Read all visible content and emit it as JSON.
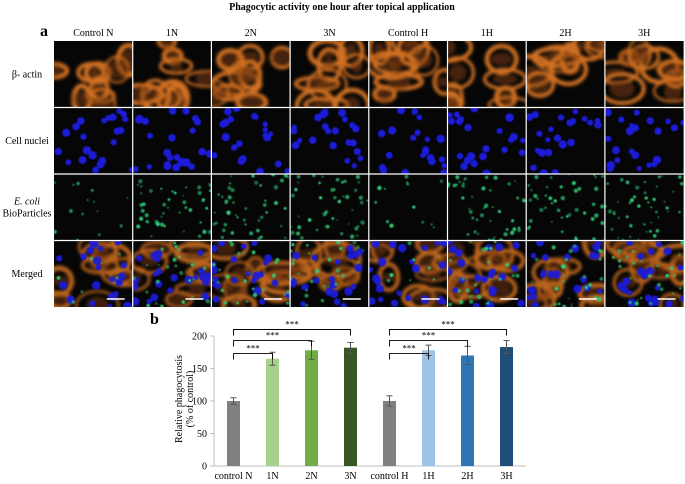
{
  "figure_title": "Phagocytic activity one hour after topical application",
  "panel_a": {
    "label": "a",
    "columns": [
      "Control N",
      "1N",
      "2N",
      "3N",
      "Control H",
      "1H",
      "2H",
      "3H"
    ],
    "rows": [
      {
        "label": "β- actin",
        "stain": "actin"
      },
      {
        "label": "Cell nuclei",
        "stain": "nuclei"
      },
      {
        "label_italic": "E. coli",
        "label": "BioParticles",
        "stain": "bioparticles"
      },
      {
        "label": "Merged",
        "stain": "merged"
      }
    ],
    "colors": {
      "actin": "#d07020",
      "nuclei": "#1a1ad8",
      "bioparticles": "#2fd07a",
      "background": "#060606"
    }
  },
  "panel_b": {
    "label": "b",
    "ylabel_line1": "Relative phagocytosis",
    "ylabel_line2": "(% of control)",
    "significance_label": "***"
  },
  "chart_data": {
    "type": "bar",
    "categories": [
      "control N",
      "1N",
      "2N",
      "3N",
      "control H",
      "1H",
      "2H",
      "3H"
    ],
    "values": [
      100,
      165,
      178,
      182,
      100,
      178,
      170,
      183
    ],
    "errors": [
      5,
      10,
      14,
      8,
      8,
      8,
      14,
      10
    ],
    "colors": [
      "#808080",
      "#a8d08d",
      "#70ad47",
      "#375623",
      "#808080",
      "#9dc3e6",
      "#2e75b6",
      "#1f4e79"
    ],
    "xlabel": "",
    "ylabel": "Relative phagocytosis (% of control)",
    "ylim": [
      0,
      200
    ],
    "yticks": [
      0,
      50,
      100,
      150,
      200
    ],
    "grid": false,
    "significance": [
      {
        "from": "control N",
        "to": "1N",
        "label": "***"
      },
      {
        "from": "control N",
        "to": "2N",
        "label": "***"
      },
      {
        "from": "control N",
        "to": "3N",
        "label": "***"
      },
      {
        "from": "control H",
        "to": "1H",
        "label": "***"
      },
      {
        "from": "control H",
        "to": "2H",
        "label": "***"
      },
      {
        "from": "control H",
        "to": "3H",
        "label": "***"
      }
    ]
  }
}
